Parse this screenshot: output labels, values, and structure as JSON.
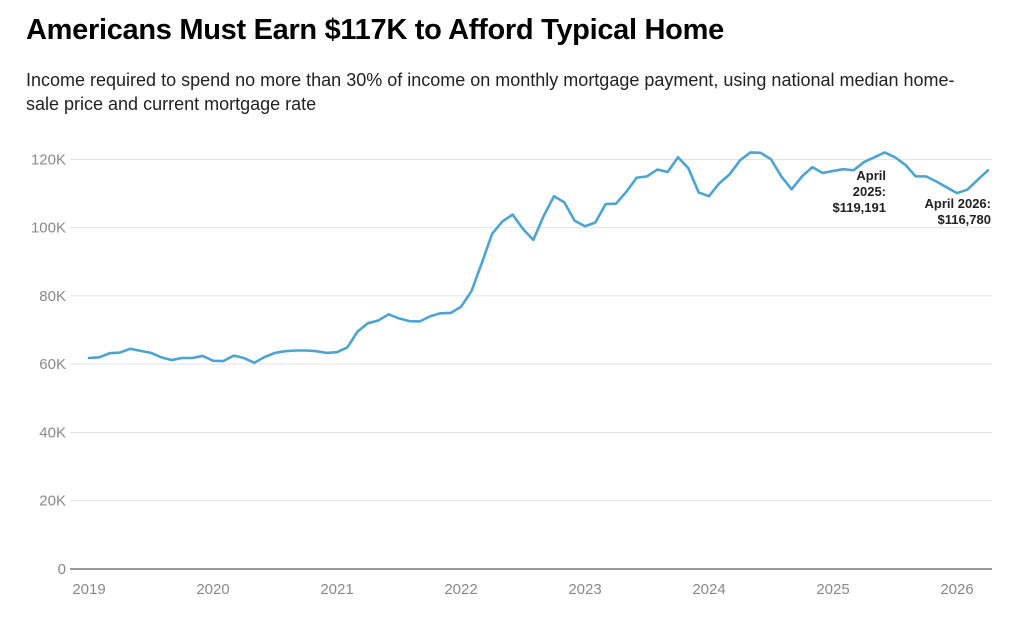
{
  "chart_data": {
    "type": "line",
    "title": "Americans Must Earn $117K to Afford Typical Home",
    "subtitle": "Income required to spend no more than 30% of income on monthly mortgage payment, using national median home-sale price and current mortgage rate",
    "xlabel": "",
    "ylabel": "",
    "ylim": [
      0,
      128000
    ],
    "y_ticks": [
      {
        "value": 0,
        "label": "0"
      },
      {
        "value": 20000,
        "label": "20K"
      },
      {
        "value": 40000,
        "label": "40K"
      },
      {
        "value": 60000,
        "label": "60K"
      },
      {
        "value": 80000,
        "label": "80K"
      },
      {
        "value": 100000,
        "label": "100K"
      },
      {
        "value": 120000,
        "label": "120K"
      }
    ],
    "x_ticks": [
      "2019",
      "2020",
      "2021",
      "2022",
      "2023",
      "2024",
      "2025",
      "2026"
    ],
    "grid": "horizontal",
    "line_color": "#4da3d4",
    "x_start": "2019-01",
    "series": [
      {
        "values": [
          61800,
          62000,
          63200,
          63400,
          64500,
          63900,
          63300,
          62000,
          61200,
          61800,
          61800,
          62400,
          61000,
          60900,
          62500,
          61800,
          60400,
          62100,
          63300,
          63800,
          64000,
          64000,
          63800,
          63300,
          63500,
          64900,
          69600,
          72000,
          72800,
          74600,
          73400,
          72600,
          72500,
          74000,
          74900,
          75000,
          76800,
          81300,
          89500,
          98100,
          101800,
          103800,
          99600,
          96400,
          103400,
          109200,
          107400,
          102000,
          100400,
          101500,
          106900,
          107000,
          110500,
          114600,
          115000,
          117000,
          116300,
          120600,
          117400,
          110300,
          109200,
          113000,
          115600,
          119700,
          122000,
          121900,
          120000,
          115000,
          111200,
          115000,
          117700,
          116000,
          116600,
          117100,
          116800,
          119191,
          120600,
          122000,
          120600,
          118400,
          115000,
          115000,
          113500,
          111800,
          110100,
          111100,
          114000,
          116780
        ]
      }
    ],
    "annotations": [
      {
        "date": "2025-04",
        "value": 119191,
        "lines": [
          "April",
          "2025:",
          "$119,191"
        ]
      },
      {
        "date": "2026-04",
        "value": 116780,
        "lines": [
          "April 2026:",
          "$116,780"
        ]
      }
    ]
  }
}
